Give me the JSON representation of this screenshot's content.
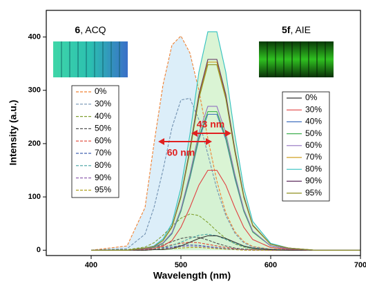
{
  "chart_data": {
    "type": "line",
    "x_label": "Wavelength (nm)",
    "y_label": "Intensity (a.u.)",
    "xlim": [
      350,
      700
    ],
    "xticks": [
      400,
      500,
      600,
      700
    ],
    "ylim": [
      -10,
      450
    ],
    "yticks": [
      0,
      100,
      200,
      300,
      400
    ],
    "x": [
      400,
      440,
      460,
      470,
      480,
      490,
      500,
      510,
      520,
      530,
      540,
      550,
      560,
      570,
      580,
      600,
      620,
      650,
      700
    ],
    "panels": [
      {
        "bold": "6",
        "text": ", ACQ"
      },
      {
        "bold": "5f",
        "text": ", AIE"
      }
    ],
    "annotations": [
      {
        "text": "43 nm",
        "color": "#e02020"
      },
      {
        "text": "60 nm",
        "color": "#e02020"
      }
    ],
    "series": [
      {
        "name": "0%",
        "color": "#f08030",
        "dashed": true,
        "fill": "#d6ebf8",
        "values": [
          0,
          8,
          80,
          200,
          310,
          385,
          402,
          370,
          300,
          210,
          130,
          70,
          35,
          16,
          7,
          2,
          1,
          0,
          0
        ]
      },
      {
        "name": "30%",
        "color": "#7090b0",
        "dashed": true,
        "values": [
          0,
          3,
          30,
          80,
          150,
          230,
          282,
          285,
          245,
          180,
          115,
          65,
          32,
          14,
          6,
          2,
          1,
          0,
          0
        ]
      },
      {
        "name": "40%",
        "color": "#80a030",
        "dashed": true,
        "values": [
          0,
          1,
          6,
          14,
          28,
          45,
          60,
          68,
          65,
          52,
          36,
          22,
          12,
          6,
          3,
          1,
          0,
          0,
          0
        ]
      },
      {
        "name": "50%",
        "color": "#505050",
        "dashed": true,
        "values": [
          0,
          0,
          2,
          5,
          10,
          16,
          22,
          25,
          24,
          19,
          13,
          8,
          4,
          2,
          1,
          0,
          0,
          0,
          0
        ]
      },
      {
        "name": "60%",
        "color": "#e04030",
        "dashed": true,
        "values": [
          0,
          0,
          1,
          3,
          6,
          10,
          13,
          15,
          14,
          11,
          8,
          5,
          3,
          1,
          1,
          0,
          0,
          0,
          0
        ]
      },
      {
        "name": "70%",
        "color": "#4060b0",
        "dashed": true,
        "values": [
          0,
          0,
          1,
          2,
          4,
          6,
          9,
          10,
          9,
          7,
          5,
          3,
          2,
          1,
          0,
          0,
          0,
          0,
          0
        ]
      },
      {
        "name": "80%",
        "color": "#40a0a0",
        "dashed": true,
        "values": [
          0,
          0,
          1,
          2,
          5,
          9,
          15,
          22,
          28,
          30,
          27,
          20,
          13,
          7,
          3,
          1,
          0,
          0,
          0
        ]
      },
      {
        "name": "90%",
        "color": "#9060b0",
        "dashed": true,
        "values": [
          0,
          0,
          1,
          1,
          3,
          5,
          7,
          8,
          7,
          6,
          4,
          2,
          1,
          1,
          0,
          0,
          0,
          0,
          0
        ]
      },
      {
        "name": "95%",
        "color": "#b0a020",
        "dashed": true,
        "values": [
          0,
          0,
          0,
          1,
          2,
          3,
          4,
          5,
          5,
          4,
          3,
          2,
          1,
          0,
          0,
          0,
          0,
          0,
          0
        ]
      },
      {
        "name": "0%",
        "color": "#333333",
        "dashed": false,
        "values": [
          0,
          0,
          0,
          1,
          1,
          3,
          8,
          15,
          22,
          27,
          27,
          22,
          15,
          8,
          4,
          1,
          0,
          0,
          0
        ]
      },
      {
        "name": "30%",
        "color": "#e04040",
        "dashed": false,
        "values": [
          0,
          0,
          2,
          3,
          8,
          18,
          43,
          80,
          122,
          150,
          150,
          122,
          80,
          43,
          20,
          5,
          2,
          0,
          0
        ]
      },
      {
        "name": "40%",
        "color": "#4070c0",
        "dashed": false,
        "values": [
          0,
          0,
          3,
          5,
          13,
          31,
          73,
          135,
          208,
          255,
          255,
          208,
          135,
          73,
          34,
          8,
          3,
          0,
          0
        ]
      },
      {
        "name": "50%",
        "color": "#40b050",
        "dashed": false,
        "values": [
          0,
          0,
          3,
          5,
          13,
          32,
          74,
          138,
          212,
          260,
          260,
          212,
          138,
          74,
          34,
          8,
          3,
          0,
          0
        ]
      },
      {
        "name": "60%",
        "color": "#9070c0",
        "dashed": false,
        "values": [
          0,
          0,
          3,
          6,
          14,
          33,
          77,
          143,
          220,
          270,
          270,
          220,
          143,
          77,
          36,
          8,
          3,
          0,
          0
        ]
      },
      {
        "name": "70%",
        "color": "#d0a020",
        "dashed": false,
        "values": [
          0,
          0,
          4,
          7,
          18,
          43,
          101,
          187,
          288,
          353,
          353,
          288,
          187,
          101,
          47,
          11,
          4,
          0,
          0
        ]
      },
      {
        "name": "80%",
        "color": "#30c0c0",
        "dashed": false,
        "fill": "#d4f2cc",
        "values": [
          0,
          0,
          4,
          8,
          21,
          50,
          117,
          217,
          334,
          410,
          410,
          334,
          217,
          117,
          54,
          13,
          4,
          0,
          0
        ]
      },
      {
        "name": "90%",
        "color": "#603060",
        "dashed": false,
        "values": [
          0,
          0,
          4,
          7,
          18,
          44,
          102,
          190,
          292,
          358,
          358,
          292,
          190,
          102,
          47,
          11,
          4,
          0,
          0
        ]
      },
      {
        "name": "95%",
        "color": "#909020",
        "dashed": false,
        "values": [
          0,
          0,
          4,
          7,
          18,
          43,
          99,
          185,
          284,
          348,
          348,
          284,
          185,
          99,
          46,
          11,
          4,
          0,
          0
        ]
      }
    ]
  }
}
